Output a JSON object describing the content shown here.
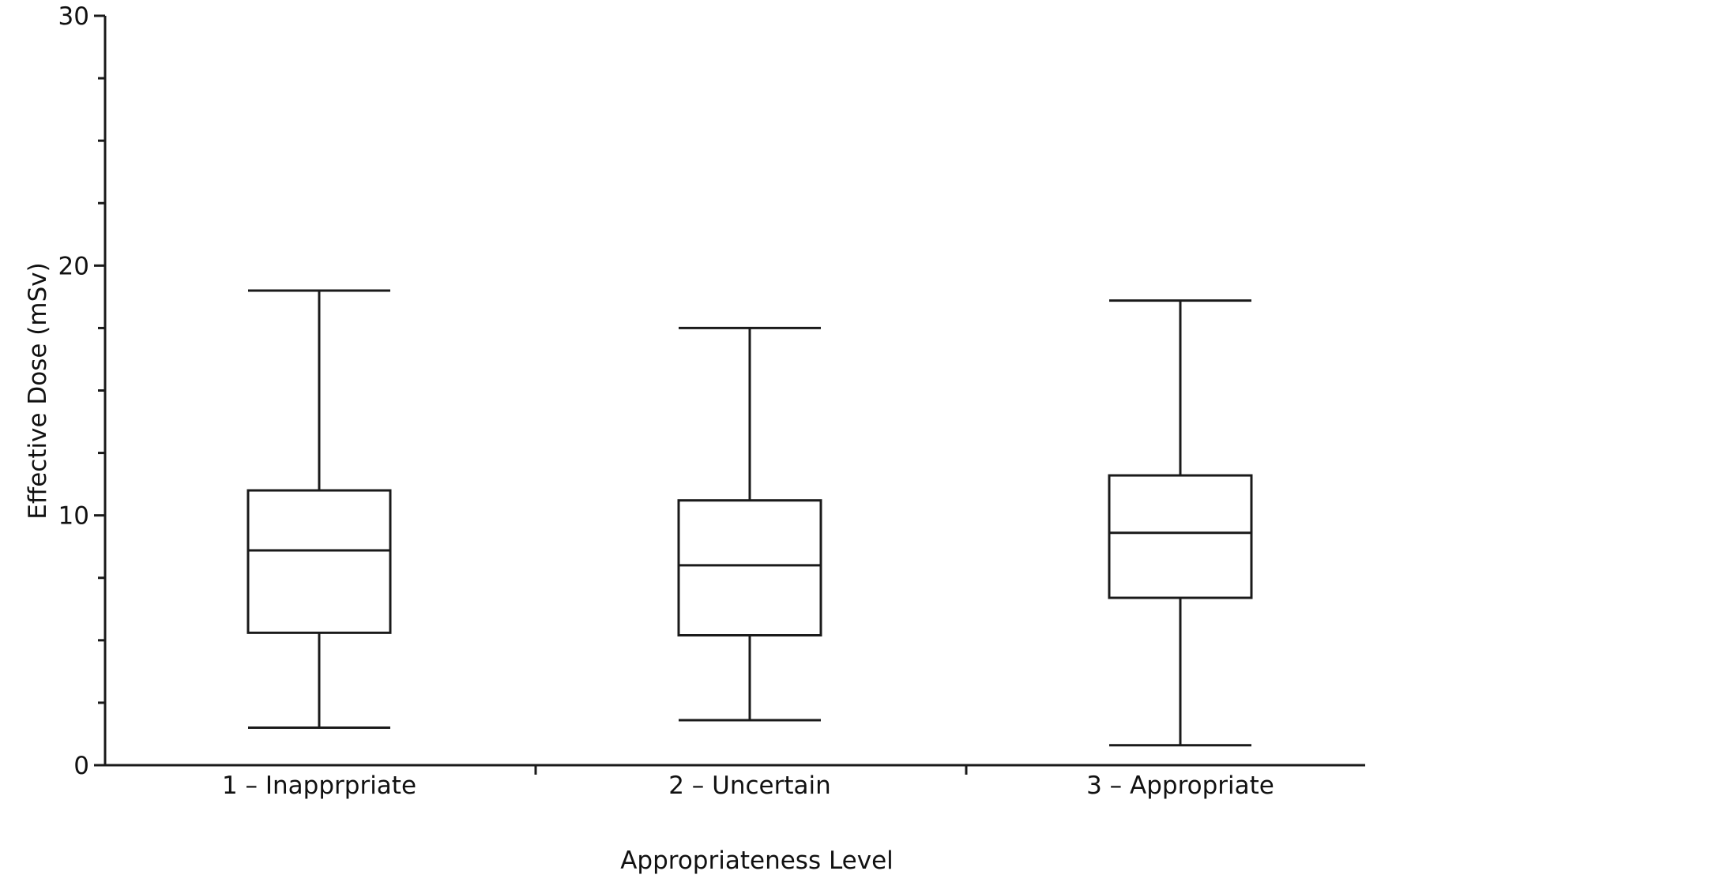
{
  "chart_data": {
    "type": "box",
    "xlabel": "Appropriateness Level",
    "ylabel": "Effective Dose (mSv)",
    "ylim": [
      0,
      30
    ],
    "major_ticks": [
      0,
      10,
      20,
      30
    ],
    "minor_tick_step": 2.5,
    "grid": false,
    "legend": "none",
    "categories": [
      "1 – Inapprpriate",
      "2 – Uncertain",
      "3 – Appropriate"
    ],
    "boxes": [
      {
        "category": "1 – Inapprpriate",
        "min": 1.5,
        "q1": 5.3,
        "median": 8.6,
        "q3": 11.0,
        "max": 19.0
      },
      {
        "category": "2 – Uncertain",
        "min": 1.8,
        "q1": 5.2,
        "median": 8.0,
        "q3": 10.6,
        "max": 17.5
      },
      {
        "category": "3 – Appropriate",
        "min": 0.8,
        "q1": 6.7,
        "median": 9.3,
        "q3": 11.6,
        "max": 18.6
      }
    ]
  }
}
